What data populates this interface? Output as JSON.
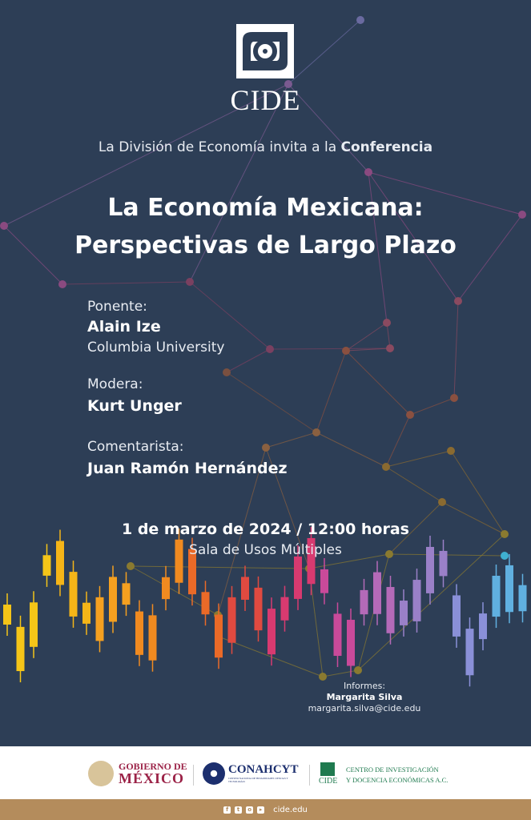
{
  "logo": {
    "name": "CIDE"
  },
  "invite": {
    "prefix": "La División de Economía invita a la ",
    "highlight": "Conferencia"
  },
  "title": {
    "line1": "La Economía Mexicana:",
    "line2": "Perspectivas de Largo Plazo"
  },
  "speaker": {
    "label": "Ponente:",
    "name": "Alain Ize",
    "affiliation": "Columbia University"
  },
  "moderator": {
    "label": "Modera:",
    "name": "Kurt Unger"
  },
  "commentator": {
    "label": "Comentarista:",
    "name": "Juan Ramón Hernández"
  },
  "event": {
    "date": "1 de marzo de 2024 / 12:00 horas",
    "venue": "Sala de Usos Múltiples"
  },
  "contact": {
    "label": "Informes:",
    "name": "Margarita Silva",
    "email": "margarita.silva@cide.edu"
  },
  "footer": {
    "gob": {
      "line1": "GOBIERNO DE",
      "line2": "MÉXICO"
    },
    "conahcyt": {
      "name": "CONAHCYT",
      "sub": "CONSEJO NACIONAL DE HUMANIDADES CIENCIAS Y TECNOLOGÍAS"
    },
    "cide": {
      "short": "CIDE",
      "line1": "CENTRO DE INVESTIGACIÓN",
      "line2": "Y DOCENCIA ECONÓMICAS A.C."
    },
    "social": [
      "facebook-icon",
      "twitter-icon",
      "instagram-icon",
      "youtube-icon"
    ],
    "website": "cide.edu"
  },
  "colors": {
    "background": "#2d3e56",
    "accent": "#b48c5c",
    "gob": "#9b2247"
  }
}
